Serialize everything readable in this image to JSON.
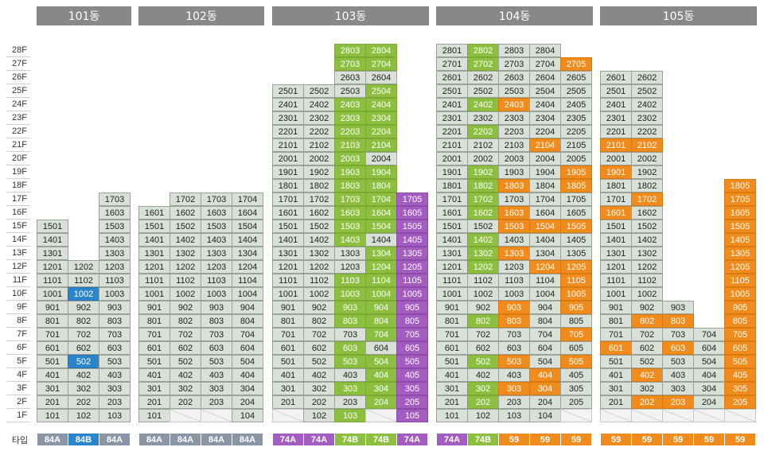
{
  "colors": {
    "header": "#888888",
    "cell": "#d9e0d8",
    "green": "#8cbf3f",
    "orange": "#f08c1e",
    "purple": "#a35cbf",
    "blue": "#2a86c8",
    "type_84A": "#8a95a5",
    "type_84B": "#2a86c8",
    "type_74A": "#a35cbf",
    "type_74B": "#8cbf3f",
    "type_59": "#f08c1e"
  },
  "floor_labels": [
    "28F",
    "27F",
    "26F",
    "25F",
    "24F",
    "23F",
    "22F",
    "21F",
    "20F",
    "19F",
    "18F",
    "17F",
    "16F",
    "15F",
    "14F",
    "13F",
    "12F",
    "11F",
    "10F",
    "9F",
    "8F",
    "7F",
    "6F",
    "5F",
    "4F",
    "3F",
    "2F",
    "1F"
  ],
  "type_row_label": "타입",
  "buildings": [
    {
      "name": "101동",
      "lines": [
        {
          "top": 15,
          "type": "84A",
          "green": [],
          "orange": [],
          "purple": [],
          "blue": [],
          "blank": []
        },
        {
          "top": 12,
          "type": "84B",
          "green": [],
          "orange": [],
          "purple": [],
          "blue": [
            5,
            10
          ],
          "blank": []
        },
        {
          "top": 17,
          "type": "84A",
          "green": [],
          "orange": [],
          "purple": [],
          "blue": [],
          "blank": []
        }
      ]
    },
    {
      "name": "102동",
      "lines": [
        {
          "top": 16,
          "type": "84A",
          "green": [],
          "orange": [],
          "purple": [],
          "blue": [],
          "blank": []
        },
        {
          "top": 17,
          "type": "84A",
          "green": [],
          "orange": [],
          "purple": [],
          "blue": [],
          "blank": [
            1
          ]
        },
        {
          "top": 17,
          "type": "84A",
          "green": [],
          "orange": [],
          "purple": [],
          "blue": [],
          "blank": [
            1
          ]
        },
        {
          "top": 17,
          "type": "84A",
          "green": [],
          "orange": [],
          "purple": [],
          "blue": [],
          "blank": []
        }
      ]
    },
    {
      "name": "103동",
      "lines": [
        {
          "top": 25,
          "type": "74A",
          "green": [],
          "orange": [],
          "purple": [],
          "blue": [],
          "blank": [
            1
          ]
        },
        {
          "top": 25,
          "type": "74A",
          "green": [],
          "orange": [],
          "purple": [],
          "blue": [],
          "blank": []
        },
        {
          "top": 28,
          "type": "74B",
          "green": [
            1,
            3,
            5,
            6,
            8,
            9,
            10,
            11,
            14,
            15,
            16,
            17,
            18,
            19,
            20,
            21,
            22,
            23,
            24,
            27,
            28
          ],
          "orange": [],
          "purple": [],
          "blue": [],
          "blank": []
        },
        {
          "top": 28,
          "type": "74B",
          "green": [
            2,
            3,
            4,
            5,
            7,
            8,
            9,
            10,
            11,
            12,
            13,
            15,
            16,
            17,
            18,
            19,
            21,
            22,
            23,
            24,
            25,
            27,
            28
          ],
          "orange": [],
          "purple": [],
          "blue": [],
          "blank": [
            1
          ]
        },
        {
          "top": 17,
          "type": "74A",
          "green": [],
          "orange": [],
          "purple": [
            1,
            2,
            3,
            4,
            5,
            6,
            7,
            8,
            9,
            10,
            11,
            12,
            13,
            14,
            15,
            16,
            17
          ],
          "blue": [],
          "blank": []
        }
      ]
    },
    {
      "name": "104동",
      "lines": [
        {
          "top": 28,
          "type": "74A",
          "green": [],
          "orange": [],
          "purple": [],
          "blue": [],
          "blank": []
        },
        {
          "top": 28,
          "type": "74B",
          "green": [
            2,
            3,
            5,
            8,
            12,
            13,
            14,
            16,
            17,
            18,
            19,
            22,
            24,
            27,
            28
          ],
          "orange": [],
          "purple": [],
          "blue": [],
          "blank": []
        },
        {
          "top": 28,
          "type": "59",
          "green": [],
          "orange": [
            3,
            5,
            8,
            9,
            13,
            15,
            16,
            18,
            24
          ],
          "purple": [],
          "blue": [],
          "blank": []
        },
        {
          "top": 28,
          "type": "59",
          "green": [],
          "orange": [
            3,
            4,
            12,
            15,
            21
          ],
          "purple": [],
          "blue": [],
          "blank": []
        },
        {
          "top": 27,
          "type": "59",
          "green": [],
          "orange": [
            5,
            7,
            9,
            10,
            11,
            12,
            15,
            18,
            19,
            27
          ],
          "purple": [],
          "blue": [],
          "blank": [
            1
          ]
        }
      ]
    },
    {
      "name": "105동",
      "lines": [
        {
          "top": 26,
          "type": "59",
          "green": [],
          "orange": [
            6,
            16,
            19,
            21
          ],
          "purple": [],
          "blue": [],
          "blank": [
            1
          ]
        },
        {
          "top": 26,
          "type": "59",
          "green": [],
          "orange": [
            2,
            4,
            8,
            17,
            21
          ],
          "purple": [],
          "blue": [],
          "blank": [
            1
          ]
        },
        {
          "top": 9,
          "type": "59",
          "green": [],
          "orange": [
            2,
            6,
            8
          ],
          "purple": [],
          "blue": [],
          "blank": [
            1
          ]
        },
        {
          "top": 7,
          "type": "59",
          "green": [],
          "orange": [],
          "purple": [],
          "blue": [],
          "blank": [
            1
          ]
        },
        {
          "top": 18,
          "type": "59",
          "green": [],
          "orange": [
            2,
            3,
            4,
            5,
            6,
            7,
            8,
            9,
            10,
            11,
            12,
            13,
            14,
            15,
            16,
            17,
            18
          ],
          "purple": [],
          "blue": [],
          "blank": [
            1
          ]
        }
      ]
    }
  ]
}
